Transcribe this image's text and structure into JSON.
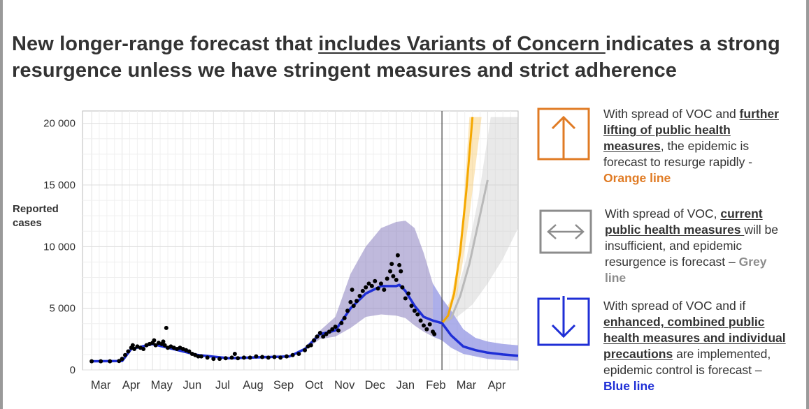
{
  "title": {
    "part1": "New longer-range forecast that ",
    "underlined": "includes Variants of Concern ",
    "part2": "indicates a strong resurgence unless we have stringent measures and strict adherence"
  },
  "chart_data": {
    "type": "line",
    "ylabel": "Reported cases",
    "ylim": [
      0,
      20000
    ],
    "yticks": [
      0,
      5000,
      10000,
      15000,
      20000
    ],
    "ytick_labels": [
      "0",
      "5 000",
      "10 000",
      "15 000",
      "20 000"
    ],
    "xtick_labels": [
      "Mar",
      "Apr",
      "May",
      "Jun",
      "Jul",
      "Aug",
      "Sep",
      "Oct",
      "Nov",
      "Dec",
      "Jan",
      "Feb",
      "Mar",
      "Apr"
    ],
    "grid": true,
    "colors": {
      "observed": "#000000",
      "model": "#1f2fd6",
      "band": "#8b7fc0",
      "orange": "#f5a800",
      "grey": "#b9b9b9"
    },
    "observed_points": [
      [
        0,
        700
      ],
      [
        0.3,
        700
      ],
      [
        0.6,
        700
      ],
      [
        0.9,
        720
      ],
      [
        1.0,
        900
      ],
      [
        1.1,
        1200
      ],
      [
        1.2,
        1500
      ],
      [
        1.3,
        1800
      ],
      [
        1.35,
        2000
      ],
      [
        1.4,
        1700
      ],
      [
        1.5,
        1900
      ],
      [
        1.6,
        1800
      ],
      [
        1.7,
        1700
      ],
      [
        1.8,
        2000
      ],
      [
        1.9,
        2100
      ],
      [
        2.0,
        2200
      ],
      [
        2.05,
        2400
      ],
      [
        2.1,
        2000
      ],
      [
        2.2,
        2200
      ],
      [
        2.3,
        2100
      ],
      [
        2.35,
        2300
      ],
      [
        2.4,
        2000
      ],
      [
        2.45,
        3400
      ],
      [
        2.5,
        1800
      ],
      [
        2.6,
        1900
      ],
      [
        2.7,
        1800
      ],
      [
        2.8,
        1700
      ],
      [
        2.9,
        1800
      ],
      [
        3.0,
        1700
      ],
      [
        3.1,
        1600
      ],
      [
        3.2,
        1500
      ],
      [
        3.3,
        1300
      ],
      [
        3.4,
        1200
      ],
      [
        3.5,
        1100
      ],
      [
        3.6,
        1100
      ],
      [
        3.8,
        1000
      ],
      [
        4.0,
        900
      ],
      [
        4.2,
        900
      ],
      [
        4.4,
        950
      ],
      [
        4.6,
        1000
      ],
      [
        4.7,
        1300
      ],
      [
        4.8,
        950
      ],
      [
        5.0,
        1000
      ],
      [
        5.2,
        1000
      ],
      [
        5.4,
        1100
      ],
      [
        5.6,
        1050
      ],
      [
        5.8,
        1000
      ],
      [
        6.0,
        1050
      ],
      [
        6.2,
        1000
      ],
      [
        6.4,
        1100
      ],
      [
        6.6,
        1200
      ],
      [
        6.8,
        1300
      ],
      [
        7.0,
        1600
      ],
      [
        7.1,
        1900
      ],
      [
        7.2,
        2000
      ],
      [
        7.3,
        2400
      ],
      [
        7.4,
        2700
      ],
      [
        7.5,
        3000
      ],
      [
        7.6,
        2700
      ],
      [
        7.7,
        2900
      ],
      [
        7.8,
        3100
      ],
      [
        7.9,
        3300
      ],
      [
        8.0,
        3500
      ],
      [
        8.1,
        3200
      ],
      [
        8.2,
        3800
      ],
      [
        8.3,
        4200
      ],
      [
        8.4,
        4800
      ],
      [
        8.5,
        5500
      ],
      [
        8.55,
        6500
      ],
      [
        8.6,
        5200
      ],
      [
        8.7,
        5600
      ],
      [
        8.8,
        6000
      ],
      [
        8.9,
        6400
      ],
      [
        9.0,
        6700
      ],
      [
        9.1,
        7000
      ],
      [
        9.2,
        6800
      ],
      [
        9.3,
        7200
      ],
      [
        9.4,
        6600
      ],
      [
        9.5,
        7000
      ],
      [
        9.6,
        6500
      ],
      [
        9.7,
        7400
      ],
      [
        9.8,
        8000
      ],
      [
        9.85,
        8600
      ],
      [
        9.9,
        7600
      ],
      [
        10.0,
        7300
      ],
      [
        10.05,
        9300
      ],
      [
        10.1,
        8500
      ],
      [
        10.15,
        8000
      ],
      [
        10.2,
        6700
      ],
      [
        10.3,
        5800
      ],
      [
        10.4,
        6200
      ],
      [
        10.5,
        5200
      ],
      [
        10.6,
        4800
      ],
      [
        10.7,
        4500
      ],
      [
        10.8,
        4000
      ],
      [
        10.9,
        3600
      ],
      [
        11.0,
        3300
      ],
      [
        11.1,
        3700
      ],
      [
        11.2,
        3100
      ],
      [
        11.25,
        2900
      ]
    ],
    "model_line": [
      [
        0,
        700
      ],
      [
        1.0,
        720
      ],
      [
        1.3,
        1700
      ],
      [
        2.0,
        2100
      ],
      [
        2.5,
        1800
      ],
      [
        3.5,
        1200
      ],
      [
        4.5,
        950
      ],
      [
        6.5,
        1100
      ],
      [
        7.0,
        1700
      ],
      [
        7.5,
        2900
      ],
      [
        8.0,
        3200
      ],
      [
        8.5,
        5000
      ],
      [
        9.0,
        6200
      ],
      [
        9.5,
        6800
      ],
      [
        10.0,
        6800
      ],
      [
        10.1,
        6900
      ],
      [
        10.3,
        6400
      ],
      [
        10.6,
        5200
      ],
      [
        10.9,
        4300
      ],
      [
        11.2,
        4000
      ],
      [
        11.5,
        3800
      ],
      [
        11.8,
        2800
      ],
      [
        12.2,
        1900
      ],
      [
        12.6,
        1600
      ],
      [
        13.0,
        1400
      ],
      [
        13.5,
        1250
      ],
      [
        14.0,
        1150
      ]
    ],
    "band_upper": [
      [
        7.0,
        1800
      ],
      [
        7.5,
        3200
      ],
      [
        8.0,
        4300
      ],
      [
        8.5,
        7800
      ],
      [
        9.0,
        10000
      ],
      [
        9.5,
        11500
      ],
      [
        10.0,
        12000
      ],
      [
        10.3,
        12100
      ],
      [
        10.6,
        11500
      ],
      [
        10.9,
        9500
      ],
      [
        11.2,
        7000
      ],
      [
        11.5,
        5800
      ],
      [
        11.8,
        4800
      ],
      [
        12.2,
        3300
      ],
      [
        12.6,
        2600
      ],
      [
        13.0,
        2300
      ],
      [
        13.5,
        2100
      ],
      [
        14.0,
        2000
      ]
    ],
    "band_lower": [
      [
        7.0,
        1600
      ],
      [
        7.5,
        2500
      ],
      [
        8.0,
        2700
      ],
      [
        8.5,
        3400
      ],
      [
        9.0,
        4300
      ],
      [
        9.5,
        4500
      ],
      [
        10.0,
        4400
      ],
      [
        10.3,
        4200
      ],
      [
        10.6,
        3600
      ],
      [
        10.9,
        3100
      ],
      [
        11.2,
        2700
      ],
      [
        11.5,
        2400
      ],
      [
        11.8,
        1800
      ],
      [
        12.2,
        1300
      ],
      [
        12.6,
        1100
      ],
      [
        13.0,
        900
      ],
      [
        13.5,
        800
      ],
      [
        14.0,
        750
      ]
    ],
    "orange_forecast": [
      [
        11.5,
        3800
      ],
      [
        11.7,
        4400
      ],
      [
        11.9,
        6200
      ],
      [
        12.1,
        9600
      ],
      [
        12.3,
        14500
      ],
      [
        12.5,
        20500
      ]
    ],
    "grey_forecast": [
      [
        11.5,
        3800
      ],
      [
        11.8,
        4200
      ],
      [
        12.1,
        6000
      ],
      [
        12.4,
        8600
      ],
      [
        12.7,
        12000
      ],
      [
        13.0,
        15400
      ]
    ],
    "forecast_start_x": 11.5
  },
  "panels": [
    {
      "icon": "arrow-up-icon",
      "color": "#e07b24",
      "text_a": "With spread of VOC and ",
      "underlined": "further lifting of public health measures",
      "text_b": ", the epidemic is forecast to resurge rapidly - ",
      "tag": "Orange line"
    },
    {
      "icon": "arrow-left-right-icon",
      "color": "#8c8c8c",
      "text_a": "With spread of VOC, ",
      "underlined": "current public health measures ",
      "text_b": "will be insufficient, and epidemic resurgence is forecast – ",
      "tag": "Grey line"
    },
    {
      "icon": "arrow-down-icon",
      "color": "#1f2fd6",
      "text_a": "With spread of VOC and if ",
      "underlined": "enhanced, combined public health measures and individual precautions",
      "text_b": " are implemented, epidemic control is forecast – ",
      "tag": "Blue line"
    }
  ]
}
